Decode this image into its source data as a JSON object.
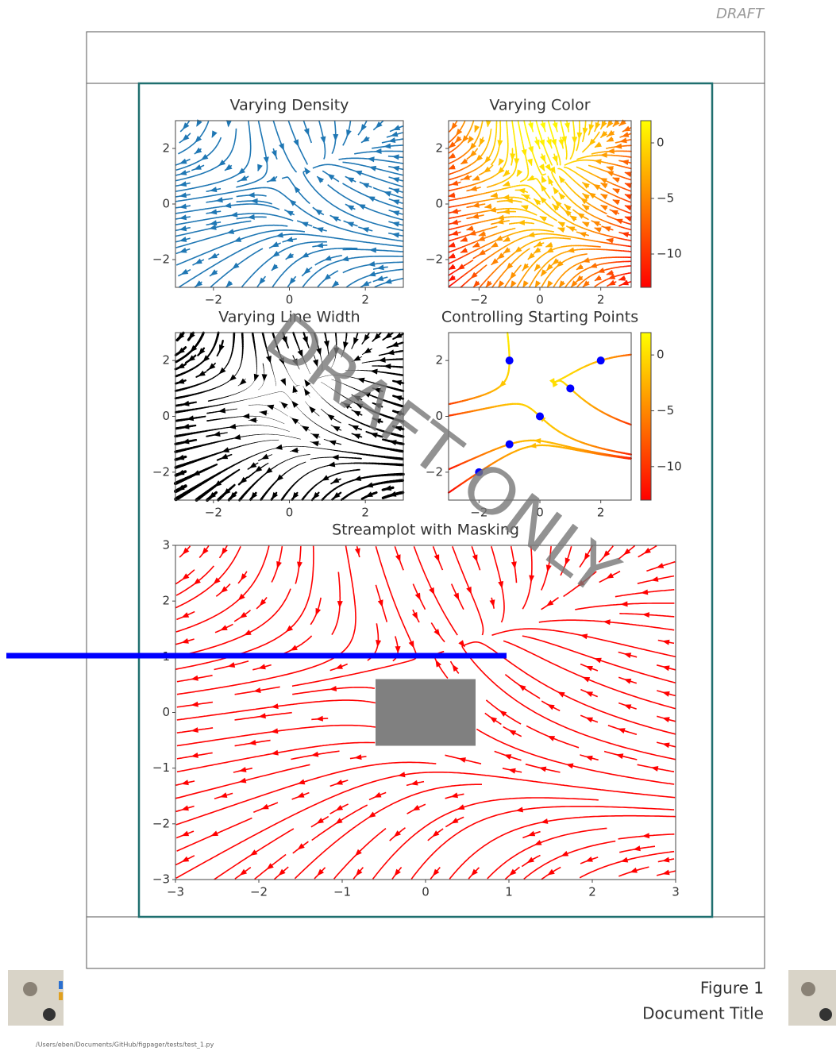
{
  "header": {
    "draft": "DRAFT"
  },
  "watermark": "DRAFT ONLY",
  "chart_data": [
    {
      "type": "streamplot",
      "title": "Varying Density",
      "color": "#1f77b4",
      "xlim": [
        -3,
        3
      ],
      "ylim": [
        -3,
        3
      ],
      "xticks": [
        {
          "value": -2,
          "label": "−2"
        },
        0,
        2
      ],
      "yticks": [
        {
          "value": -2,
          "label": "−2"
        },
        0,
        2
      ]
    },
    {
      "type": "streamplot",
      "title": "Varying Color",
      "xlim": [
        -3,
        3
      ],
      "ylim": [
        -3,
        3
      ],
      "xticks": [
        {
          "value": -2,
          "label": "−2"
        },
        0,
        2
      ],
      "yticks": [
        {
          "value": -2,
          "label": "−2"
        },
        0,
        2
      ],
      "colorbar": {
        "colormap": "autumn",
        "lim": [
          -13,
          2
        ],
        "ticks": [
          0,
          {
            "value": -5,
            "label": "−5"
          },
          {
            "value": -10,
            "label": "−10"
          }
        ]
      }
    },
    {
      "type": "streamplot",
      "title": "Varying Line Width",
      "color": "#000000",
      "xlim": [
        -3,
        3
      ],
      "ylim": [
        -3,
        3
      ],
      "xticks": [
        {
          "value": -2,
          "label": "−2"
        },
        0,
        2
      ],
      "yticks": [
        {
          "value": -2,
          "label": "−2"
        },
        0,
        2
      ]
    },
    {
      "type": "streamplot",
      "title": "Controlling Starting Points",
      "xlim": [
        -3,
        3
      ],
      "ylim": [
        -3,
        3
      ],
      "xticks": [
        {
          "value": -2,
          "label": "−2"
        },
        0,
        2
      ],
      "yticks": [
        {
          "value": -2,
          "label": "−2"
        },
        0,
        2
      ],
      "colorbar": {
        "colormap": "autumn",
        "lim": [
          -13,
          2
        ],
        "ticks": [
          0,
          {
            "value": -5,
            "label": "−5"
          },
          {
            "value": -10,
            "label": "−10"
          }
        ]
      },
      "seed_points": {
        "color": "#0000ff",
        "x": [
          -2,
          -1,
          0,
          1,
          2,
          -1
        ],
        "y": [
          -2,
          -1,
          0,
          1,
          2,
          2
        ]
      }
    },
    {
      "type": "streamplot",
      "title": "Streamplot with Masking",
      "color": "#ff0000",
      "xlim": [
        -3,
        3
      ],
      "ylim": [
        -3,
        3
      ],
      "xticks": [
        {
          "value": -3,
          "label": "−3"
        },
        {
          "value": -2,
          "label": "−2"
        },
        {
          "value": -1,
          "label": "−1"
        },
        0,
        1,
        2,
        3
      ],
      "yticks": [
        {
          "value": -3,
          "label": "−3"
        },
        {
          "value": -2,
          "label": "−2"
        },
        {
          "value": -1,
          "label": "−1"
        },
        0,
        1,
        2,
        3
      ]
    }
  ],
  "footer": {
    "figure": "Figure 1",
    "title": "Document Title",
    "path": "/Users/eben/Documents/GitHub/figpager/tests/test_1.py"
  }
}
